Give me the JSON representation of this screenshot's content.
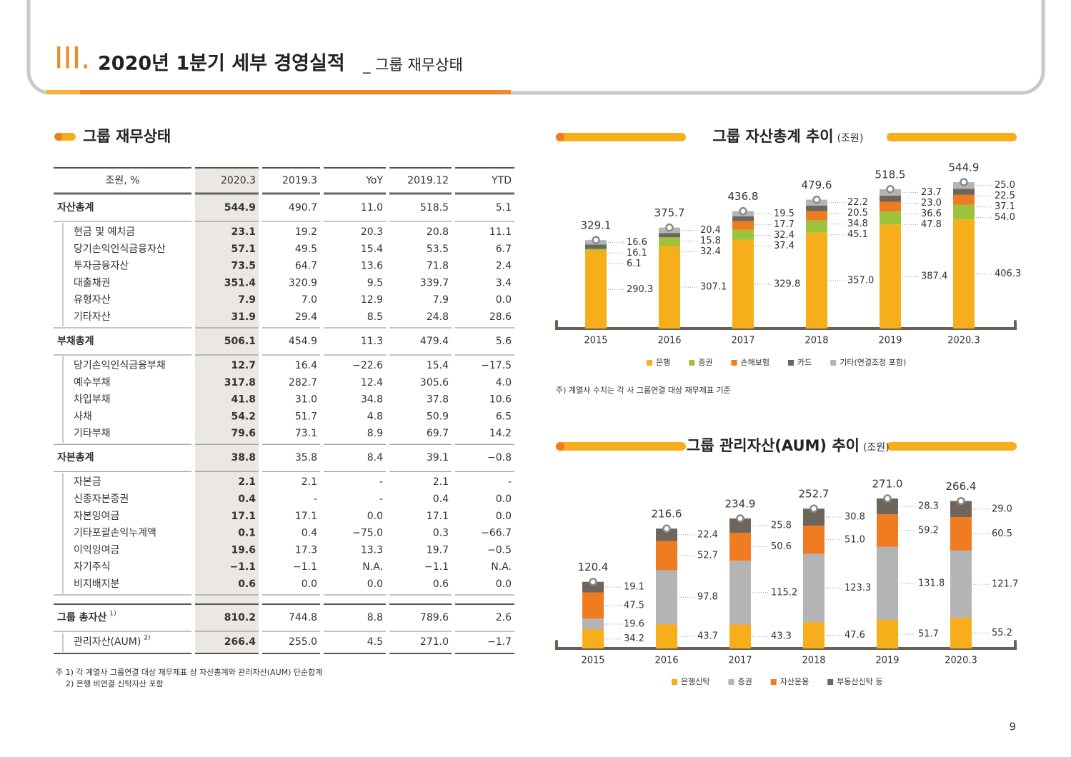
{
  "header": {
    "numeral": "III.",
    "title": "2020년 1분기 세부 경영실적",
    "subtitle": "_ 그룹 재무상태"
  },
  "table": {
    "title": "그룹 재무상태",
    "columns": [
      "조원, %",
      "2020.3",
      "2019.3",
      "YoY",
      "2019.12",
      "YTD"
    ],
    "sections": [
      {
        "total": {
          "cells": [
            "자산총계",
            "544.9",
            "490.7",
            "11.0",
            "518.5",
            "5.1"
          ]
        },
        "items": [
          {
            "cells": [
              "현금 및 예치금",
              "23.1",
              "19.2",
              "20.3",
              "20.8",
              "11.1"
            ]
          },
          {
            "cells": [
              "당기손익인식금융자산",
              "57.1",
              "49.5",
              "15.4",
              "53.5",
              "6.7"
            ]
          },
          {
            "cells": [
              "투자금융자산",
              "73.5",
              "64.7",
              "13.6",
              "71.8",
              "2.4"
            ]
          },
          {
            "cells": [
              "대출채권",
              "351.4",
              "320.9",
              "9.5",
              "339.7",
              "3.4"
            ]
          },
          {
            "cells": [
              "유형자산",
              "7.9",
              "7.0",
              "12.9",
              "7.9",
              "0.0"
            ]
          },
          {
            "cells": [
              "기타자산",
              "31.9",
              "29.4",
              "8.5",
              "24.8",
              "28.6"
            ]
          }
        ]
      },
      {
        "total": {
          "cells": [
            "부채총계",
            "506.1",
            "454.9",
            "11.3",
            "479.4",
            "5.6"
          ]
        },
        "items": [
          {
            "cells": [
              "당기손익인식금융부채",
              "12.7",
              "16.4",
              "−22.6",
              "15.4",
              "−17.5"
            ]
          },
          {
            "cells": [
              "예수부채",
              "317.8",
              "282.7",
              "12.4",
              "305.6",
              "4.0"
            ]
          },
          {
            "cells": [
              "차입부채",
              "41.8",
              "31.0",
              "34.8",
              "37.8",
              "10.6"
            ]
          },
          {
            "cells": [
              "사채",
              "54.2",
              "51.7",
              "4.8",
              "50.9",
              "6.5"
            ]
          },
          {
            "cells": [
              "기타부채",
              "79.6",
              "73.1",
              "8.9",
              "69.7",
              "14.2"
            ]
          }
        ]
      },
      {
        "total": {
          "cells": [
            "자본총계",
            "38.8",
            "35.8",
            "8.4",
            "39.1",
            "−0.8"
          ]
        },
        "items": [
          {
            "cells": [
              "자본금",
              "2.1",
              "2.1",
              "-",
              "2.1",
              "-"
            ]
          },
          {
            "cells": [
              "신종자본증권",
              "0.4",
              "-",
              "-",
              "0.4",
              "0.0"
            ]
          },
          {
            "cells": [
              "자본잉여금",
              "17.1",
              "17.1",
              "0.0",
              "17.1",
              "0.0"
            ]
          },
          {
            "cells": [
              "기타포괄손익누계액",
              "0.1",
              "0.4",
              "−75.0",
              "0.3",
              "−66.7"
            ]
          },
          {
            "cells": [
              "이익잉여금",
              "19.6",
              "17.3",
              "13.3",
              "19.7",
              "−0.5"
            ]
          },
          {
            "cells": [
              "자기주식",
              "−1.1",
              "−1.1",
              "N.A.",
              "−1.1",
              "N.A."
            ]
          },
          {
            "cells": [
              "비지배지분",
              "0.6",
              "0.0",
              "0.0",
              "0.6",
              "0.0"
            ]
          }
        ]
      },
      {
        "total": {
          "cells": [
            "그룹 총자산",
            "810.2",
            "744.8",
            "8.8",
            "789.6",
            "2.6"
          ],
          "ref": "1)"
        },
        "items": [
          {
            "cells": [
              "관리자산(AUM)",
              "266.4",
              "255.0",
              "4.5",
              "271.0",
              "−1.7"
            ],
            "ref": "2)"
          }
        ]
      }
    ]
  },
  "notes": [
    "주 1) 각 계열사 그룹연결 대상 재무제표 상 자산총계와 관리자산(AUM) 단순합계",
    "2) 은행 비연결 신탁자산 포함"
  ],
  "chart_data": [
    {
      "type": "bar",
      "stacked": true,
      "title": "그룹 자산총계 추이",
      "unit": "(조원)",
      "categories": [
        "2015",
        "2016",
        "2017",
        "2018",
        "2019",
        "2020.3"
      ],
      "series": [
        {
          "name": "은행",
          "color": "#f6ae1b",
          "values": [
            290.3,
            307.1,
            329.8,
            357.0,
            387.4,
            406.3
          ],
          "value_labels": [
            "290.3",
            "307.1",
            "329.8",
            "357.0",
            "387.4",
            "406.3"
          ]
        },
        {
          "name": "증권",
          "color": "#9dc33b",
          "values": [
            6.1,
            32.4,
            37.4,
            45.1,
            47.8,
            54.0
          ],
          "value_labels": [
            "6.1",
            "32.4",
            "37.4",
            "45.1",
            "47.8",
            "54.0"
          ]
        },
        {
          "name": "손해보험",
          "color": "#f07c22",
          "values": [
            null,
            null,
            32.4,
            34.8,
            36.6,
            37.1
          ],
          "value_labels": [
            null,
            null,
            "32.4",
            "34.8",
            "36.6",
            "37.1"
          ]
        },
        {
          "name": "카드",
          "color": "#6e655c",
          "values": [
            16.1,
            15.8,
            17.7,
            20.5,
            23.0,
            22.5
          ],
          "value_labels": [
            "16.1",
            "15.8",
            "17.7",
            "20.5",
            "23.0",
            "22.5"
          ]
        },
        {
          "name": "기타(연결조정 포함)",
          "color": "#b4b4b4",
          "values": [
            16.6,
            20.4,
            19.5,
            22.2,
            23.7,
            25.0
          ],
          "value_labels": [
            "16.6",
            "20.4",
            "19.5",
            "22.2",
            "23.7",
            "25.0"
          ]
        }
      ],
      "totals": [
        329.1,
        375.7,
        436.8,
        479.6,
        518.5,
        544.9
      ],
      "total_labels": [
        "329.1",
        "375.7",
        "436.8",
        "479.6",
        "518.5",
        "544.9"
      ],
      "note": "주) 계열사 수치는 각 사 그룹연결 대상 재무제표 기준"
    },
    {
      "type": "bar",
      "stacked": true,
      "title": "그룹 관리자산(AUM) 추이",
      "unit": "(조원)",
      "categories": [
        "2015",
        "2016",
        "2017",
        "2018",
        "2019",
        "2020.3"
      ],
      "series": [
        {
          "name": "은행신탁",
          "color": "#f6ae1b",
          "values": [
            34.2,
            43.7,
            43.3,
            47.6,
            51.7,
            55.2
          ],
          "value_labels": [
            "34.2",
            "43.7",
            "43.3",
            "47.6",
            "51.7",
            "55.2"
          ]
        },
        {
          "name": "증권",
          "color": "#b4b4b4",
          "values": [
            19.6,
            97.8,
            115.2,
            123.3,
            131.8,
            121.7
          ],
          "value_labels": [
            "19.6",
            "97.8",
            "115.2",
            "123.3",
            "131.8",
            "121.7"
          ]
        },
        {
          "name": "자산운용",
          "color": "#f07c22",
          "values": [
            47.5,
            52.7,
            50.6,
            51.0,
            59.2,
            60.5
          ],
          "value_labels": [
            "47.5",
            "52.7",
            "50.6",
            "51.0",
            "59.2",
            "60.5"
          ]
        },
        {
          "name": "부동산신탁 등",
          "color": "#6e655c",
          "values": [
            19.1,
            22.4,
            25.8,
            30.8,
            28.3,
            29.0
          ],
          "value_labels": [
            "19.1",
            "22.4",
            "25.8",
            "30.8",
            "28.3",
            "29.0"
          ]
        }
      ],
      "totals": [
        120.4,
        216.6,
        234.9,
        252.7,
        271.0,
        266.4
      ],
      "total_labels": [
        "120.4",
        "216.6",
        "234.9",
        "252.7",
        "271.0",
        "266.4"
      ]
    }
  ],
  "page_number": "9"
}
